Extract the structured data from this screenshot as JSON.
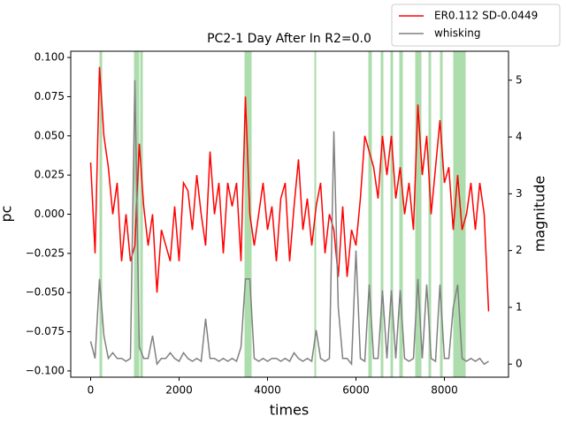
{
  "chart_data": {
    "type": "line",
    "title": "PC2-1 Day After In R2=0.0",
    "x_label": "times",
    "y_label": "pc",
    "y2_label": "magnitude",
    "x": [
      0,
      100,
      200,
      300,
      400,
      500,
      600,
      700,
      800,
      900,
      1000,
      1100,
      1200,
      1300,
      1400,
      1500,
      1600,
      1700,
      1800,
      1900,
      2000,
      2100,
      2200,
      2300,
      2400,
      2500,
      2600,
      2700,
      2800,
      2900,
      3000,
      3100,
      3200,
      3300,
      3400,
      3500,
      3600,
      3700,
      3800,
      3900,
      4000,
      4100,
      4200,
      4300,
      4400,
      4500,
      4600,
      4700,
      4800,
      4900,
      5000,
      5100,
      5200,
      5300,
      5400,
      5500,
      5600,
      5700,
      5800,
      5900,
      6000,
      6100,
      6200,
      6300,
      6400,
      6500,
      6600,
      6700,
      6800,
      6900,
      7000,
      7100,
      7200,
      7300,
      7400,
      7500,
      7600,
      7700,
      7800,
      7900,
      8000,
      8100,
      8200,
      8300,
      8400,
      8500,
      8600,
      8700,
      8800,
      8900,
      9000
    ],
    "series": [
      {
        "name": "ER0.112 SD-0.0449",
        "color": "#ff0000",
        "axis": "y",
        "values": [
          0.033,
          -0.025,
          0.094,
          0.05,
          0.03,
          0.0,
          0.02,
          -0.03,
          0.0,
          -0.03,
          -0.02,
          0.045,
          0.005,
          -0.02,
          0.0,
          -0.05,
          -0.01,
          -0.02,
          -0.03,
          0.005,
          -0.03,
          0.02,
          0.015,
          -0.01,
          0.025,
          0.0,
          -0.02,
          0.04,
          0.0,
          0.02,
          -0.025,
          0.02,
          0.005,
          0.02,
          -0.03,
          0.075,
          0.0,
          -0.02,
          0.0,
          0.02,
          -0.01,
          0.005,
          -0.03,
          0.01,
          0.02,
          -0.03,
          0.005,
          0.035,
          -0.01,
          0.01,
          -0.02,
          0.005,
          0.02,
          -0.025,
          0.0,
          -0.01,
          -0.04,
          0.005,
          -0.04,
          -0.01,
          -0.02,
          0.01,
          0.05,
          0.04,
          0.03,
          0.01,
          0.05,
          0.025,
          0.05,
          0.01,
          0.03,
          0.0,
          0.02,
          -0.01,
          0.07,
          0.025,
          0.05,
          0.0,
          0.03,
          0.06,
          0.02,
          0.03,
          -0.01,
          0.025,
          -0.01,
          0.0,
          0.02,
          -0.01,
          0.02,
          0.0,
          -0.062
        ]
      },
      {
        "name": "whisking",
        "color": "#808080",
        "axis": "y2",
        "values": [
          0.4,
          0.1,
          1.5,
          0.5,
          0.1,
          0.2,
          0.1,
          0.1,
          0.05,
          0.1,
          5.0,
          0.3,
          0.1,
          0.1,
          0.5,
          0.0,
          0.1,
          0.1,
          0.2,
          0.1,
          0.05,
          0.2,
          0.1,
          0.05,
          0.1,
          0.05,
          0.8,
          0.1,
          0.1,
          0.05,
          0.1,
          0.05,
          0.1,
          0.05,
          0.3,
          1.5,
          1.5,
          0.1,
          0.05,
          0.1,
          0.05,
          0.1,
          0.1,
          0.05,
          0.1,
          0.05,
          0.2,
          0.1,
          0.05,
          0.1,
          0.05,
          0.6,
          0.1,
          0.05,
          0.1,
          4.1,
          1.0,
          0.1,
          0.1,
          0.0,
          2.0,
          0.1,
          0.05,
          1.4,
          0.1,
          0.1,
          1.3,
          0.1,
          1.3,
          0.1,
          1.3,
          0.1,
          0.05,
          0.1,
          1.5,
          0.1,
          1.4,
          0.1,
          0.05,
          1.4,
          0.1,
          0.1,
          1.0,
          1.4,
          0.1,
          0.05,
          0.1,
          0.05,
          0.1,
          0.0,
          0.05
        ]
      }
    ],
    "spans": [
      [
        200,
        260
      ],
      [
        980,
        1100
      ],
      [
        1120,
        1180
      ],
      [
        3480,
        3640
      ],
      [
        5060,
        5100
      ],
      [
        6280,
        6360
      ],
      [
        6560,
        6620
      ],
      [
        6780,
        6840
      ],
      [
        6980,
        7060
      ],
      [
        7340,
        7480
      ],
      [
        7640,
        7700
      ],
      [
        7900,
        7960
      ],
      [
        8200,
        8480
      ]
    ],
    "span_color": "#6abf69",
    "xlim": [
      -450,
      9450
    ],
    "xticks": [
      0,
      2000,
      4000,
      6000,
      8000
    ],
    "ylim": [
      -0.104,
      0.104
    ],
    "yticks": [
      {
        "value": -0.1,
        "label": "−0.100"
      },
      {
        "value": -0.075,
        "label": "−0.075"
      },
      {
        "value": -0.05,
        "label": "−0.050"
      },
      {
        "value": -0.025,
        "label": "−0.025"
      },
      {
        "value": 0,
        "label": "0.000"
      },
      {
        "value": 0.025,
        "label": "0.025"
      },
      {
        "value": 0.05,
        "label": "0.050"
      },
      {
        "value": 0.075,
        "label": "0.075"
      },
      {
        "value": 0.1,
        "label": "0.100"
      }
    ],
    "y2lim": [
      -0.23,
      5.51
    ],
    "y2ticks": [
      0,
      1,
      2,
      3,
      4,
      5
    ],
    "legend": "upper right"
  }
}
